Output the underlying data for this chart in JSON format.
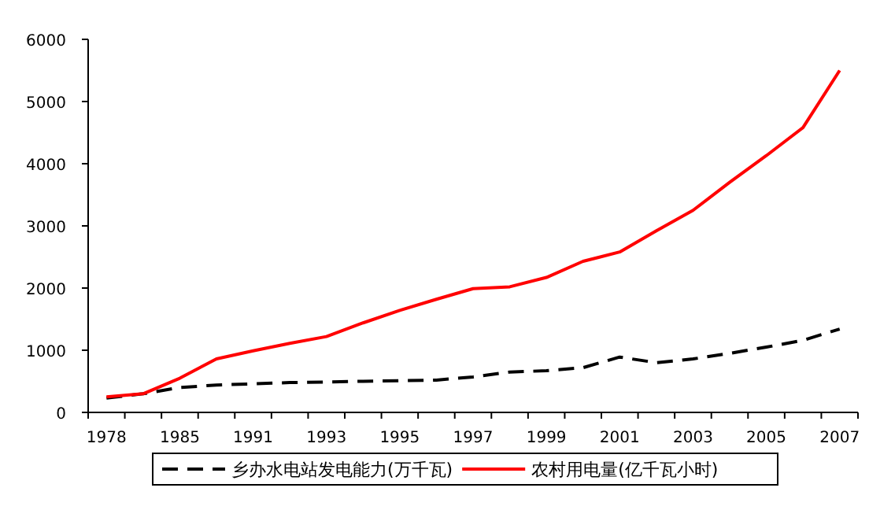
{
  "chart_data": {
    "type": "line",
    "categories": [
      "1978",
      null,
      "1985",
      null,
      "1991",
      null,
      "1993",
      null,
      "1995",
      null,
      "1997",
      null,
      "1999",
      null,
      "2001",
      null,
      "2003",
      null,
      "2005",
      null,
      "2007"
    ],
    "ylim": [
      0,
      6000
    ],
    "yticks": [
      0,
      1000,
      2000,
      3000,
      4000,
      5000,
      6000
    ],
    "grid": false,
    "legend": "bottom",
    "marker": "none",
    "series": [
      {
        "name": "乡办水电站发电能力(万千瓦)",
        "color": "#000000",
        "line_style": "dashed",
        "values": [
          230,
          300,
          400,
          440,
          460,
          480,
          490,
          500,
          510,
          520,
          570,
          650,
          670,
          720,
          890,
          800,
          860,
          950,
          1050,
          1160,
          1340
        ]
      },
      {
        "name": "农村用电量(亿千瓦小时)",
        "color": "#ff0000",
        "line_style": "solid",
        "values": [
          250,
          300,
          550,
          860,
          990,
          1110,
          1220,
          1440,
          1640,
          1820,
          1990,
          2020,
          2170,
          2430,
          2580,
          2920,
          3250,
          3700,
          4130,
          4580,
          5500
        ]
      }
    ]
  }
}
